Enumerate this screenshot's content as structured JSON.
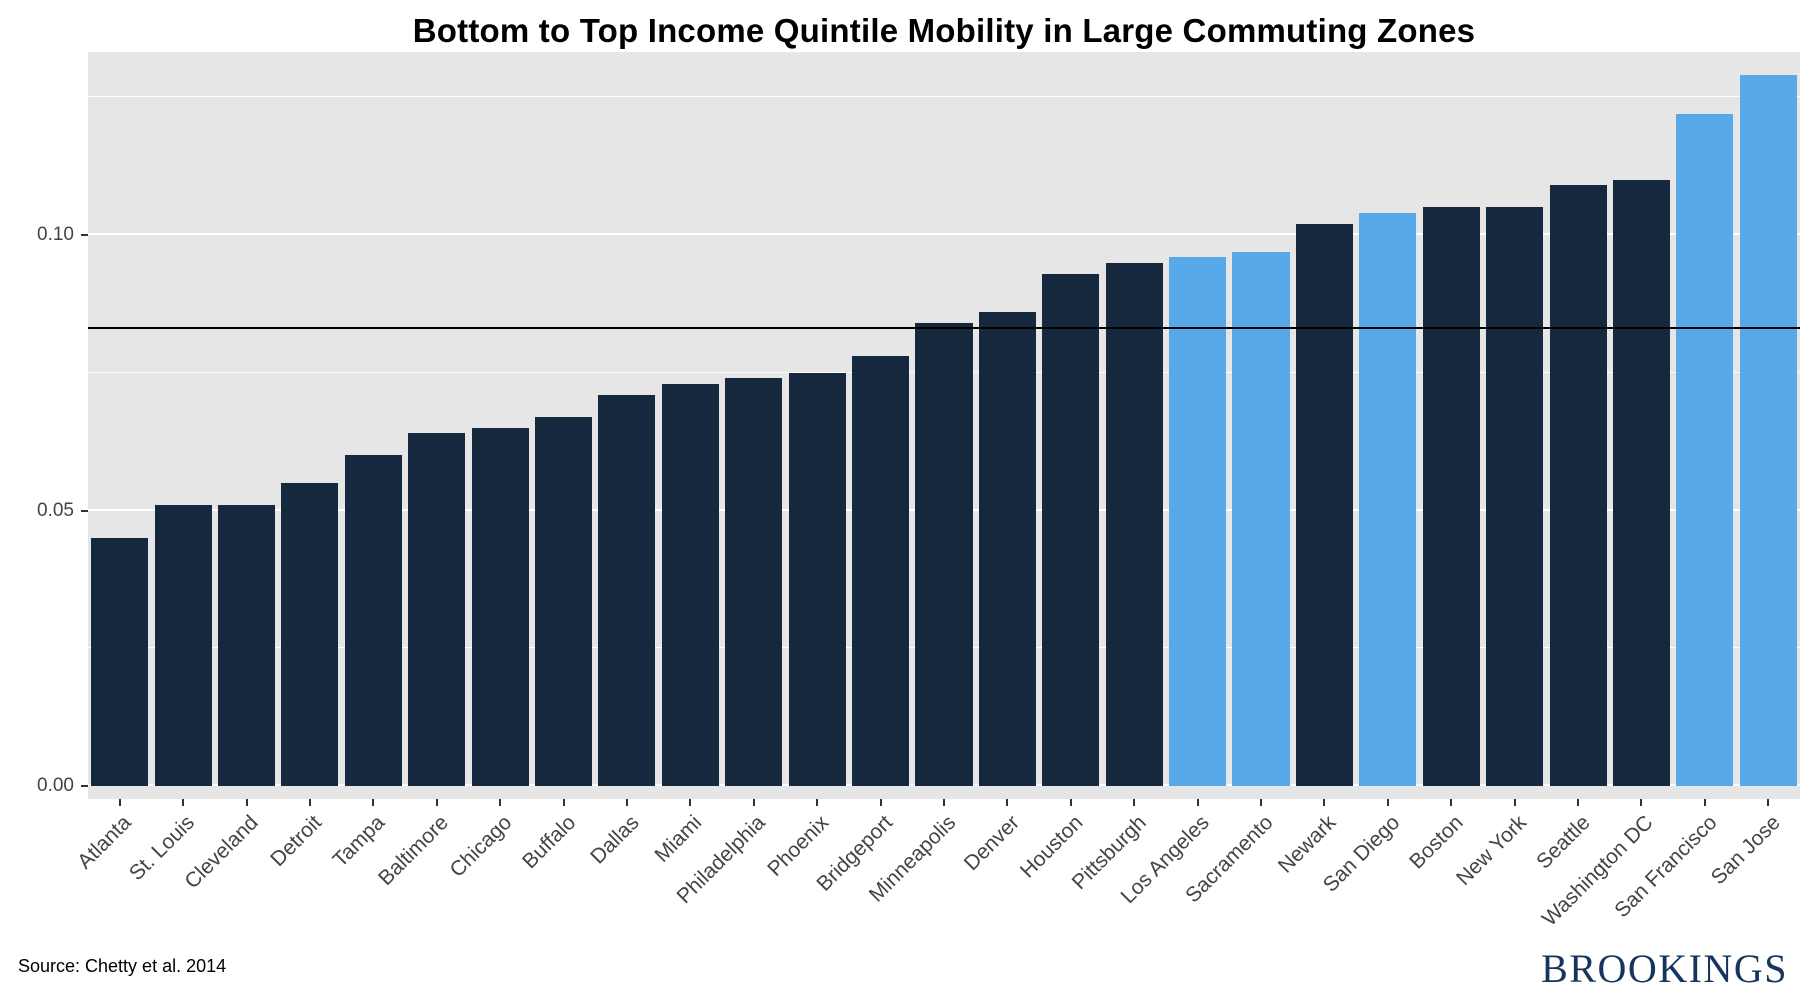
{
  "figure": {
    "title": "Bottom to Top Income Quintile Mobility in Large Commuting Zones",
    "source_note": "Source: Chetty et al. 2014",
    "logo_text": "BROOKINGS"
  },
  "colors": {
    "bar": "#15283D",
    "highlight": "#57A9EA",
    "panel_bg": "#E6E6E6",
    "gridline": "#FFFFFF",
    "axis_text": "#444444",
    "reference_line": "#000000",
    "logo": "#15355E",
    "title": "#000000"
  },
  "chart_data": {
    "type": "bar",
    "title": "Bottom to Top Income Quintile Mobility in Large Commuting Zones",
    "xlabel": "",
    "ylabel": "",
    "legend": "none",
    "grid": "on",
    "ylim": [
      0,
      0.133
    ],
    "categories": [
      "Atlanta",
      "St. Louis",
      "Cleveland",
      "Detroit",
      "Tampa",
      "Baltimore",
      "Chicago",
      "Buffalo",
      "Dallas",
      "Miami",
      "Philadelphia",
      "Phoenix",
      "Bridgeport",
      "Minneapolis",
      "Denver",
      "Houston",
      "Pittsburgh",
      "Los Angeles",
      "Sacramento",
      "Newark",
      "San Diego",
      "Boston",
      "New York",
      "Seattle",
      "Washington DC",
      "San Francisco",
      "San Jose"
    ],
    "values": [
      0.045,
      0.051,
      0.051,
      0.055,
      0.06,
      0.064,
      0.065,
      0.067,
      0.071,
      0.073,
      0.074,
      0.075,
      0.078,
      0.084,
      0.086,
      0.093,
      0.095,
      0.096,
      0.097,
      0.102,
      0.104,
      0.105,
      0.105,
      0.109,
      0.11,
      0.122,
      0.129
    ],
    "highlighted": [
      "Los Angeles",
      "Sacramento",
      "San Diego",
      "San Francisco",
      "San Jose"
    ],
    "reference_line": 0.083,
    "y_ticks": [
      {
        "value": 0.0,
        "label": "0.00"
      },
      {
        "value": 0.05,
        "label": "0.05"
      },
      {
        "value": 0.1,
        "label": "0.10"
      }
    ],
    "y_minor": [
      0.025,
      0.075,
      0.125
    ],
    "source": "Source: Chetty et al. 2014"
  }
}
